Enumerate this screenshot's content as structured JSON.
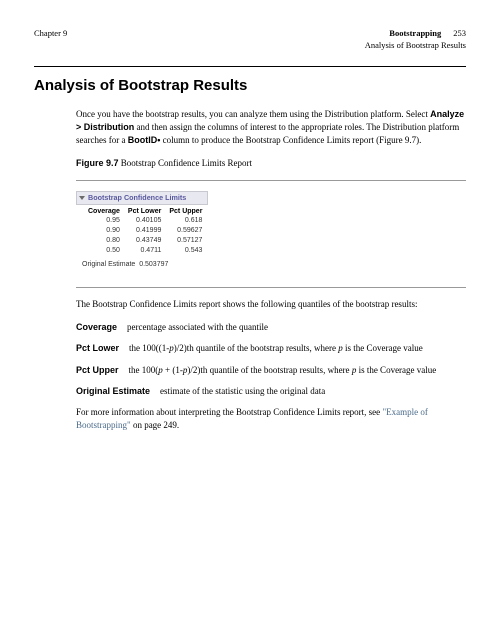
{
  "header": {
    "chapter_left": "Chapter 9",
    "right_bold": "Bootstrapping",
    "page_number": "253",
    "right_sub": "Analysis of Bootstrap Results"
  },
  "section_title": "Analysis of Bootstrap Results",
  "intro_para_parts": {
    "p1a": "Once you have the bootstrap results, you can analyze them using the Distribution platform. Select ",
    "p1b": "Analyze > Distribution",
    "p1c": " and then assign the columns of interest to the appropriate roles. The Distribution platform searches for a ",
    "p1d": "BootID•",
    "p1e": " column to produce the Bootstrap Confidence Limits report (Figure 9.7)."
  },
  "figure": {
    "num": "Figure 9.7",
    "caption": "Bootstrap Confidence Limits Report"
  },
  "report": {
    "title": "Bootstrap Confidence Limits",
    "columns": [
      "Coverage",
      "Pct Lower",
      "Pct Upper"
    ],
    "rows": [
      [
        "0.95",
        "0.40105",
        "0.618"
      ],
      [
        "0.90",
        "0.41999",
        "0.59627"
      ],
      [
        "0.80",
        "0.43749",
        "0.57127"
      ],
      [
        "0.50",
        "0.4711",
        "0.543"
      ]
    ],
    "orig_label": "Original Estimate",
    "orig_value": "0.503797"
  },
  "after_fig_para": "The Bootstrap Confidence Limits report shows the following quantiles of the bootstrap results:",
  "defs": {
    "coverage_term": "Coverage",
    "coverage_def": "percentage associated with the quantile",
    "pctlower_term": "Pct Lower",
    "pctlower_a": "the 100((1-",
    "pctlower_p": "p",
    "pctlower_b": ")/2)th quantile of the bootstrap results, where ",
    "pctlower_c": " is the Coverage value",
    "pctupper_term": "Pct Upper",
    "pctupper_a": "the 100(",
    "pctupper_b": " + (1-",
    "pctupper_c": ")/2)th quantile of the bootstrap results, where ",
    "pctupper_d": " is the Coverage value",
    "orig_term": "Original Estimate",
    "orig_def": "estimate of the statistic using the original data"
  },
  "closing": {
    "a": "For more information about interpreting the Bootstrap Confidence Limits report, see ",
    "link": "\"Example of Bootstrapping\"",
    "b": " on page 249."
  },
  "colors": {
    "link": "#4a6a8a",
    "report_title_bg": "#e8e8f0",
    "report_title_text": "#5a5aa0"
  }
}
